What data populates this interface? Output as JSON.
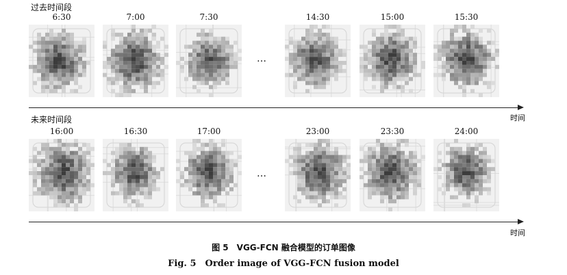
{
  "past": {
    "label": "过去时间段",
    "times": [
      "6:30",
      "7:00",
      "7:30",
      "14:30",
      "15:00",
      "15:30"
    ]
  },
  "future": {
    "label": "未来时间段",
    "times": [
      "16:00",
      "16:30",
      "17:00",
      "23:00",
      "23:30",
      "24:00"
    ]
  },
  "ellipsis": "…",
  "axis_label": "时间",
  "caption_cn": "图 5　VGG-FCN 融合模型的订单图像",
  "caption_en": "Fig. 5　Order image of VGG-FCN fusion model"
}
